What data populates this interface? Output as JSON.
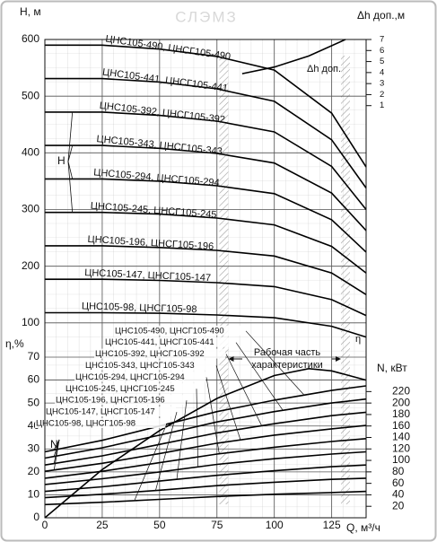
{
  "watermark": "СЛЭМЗ",
  "chart_data": [
    {
      "type": "line",
      "y_label": "H, м",
      "x_label": "Q, м³/ч",
      "xlim": [
        0,
        140
      ],
      "xticks": [
        0,
        25,
        50,
        75,
        100,
        125
      ],
      "ylim": [
        0,
        600
      ],
      "yticks": [
        100,
        200,
        300,
        400,
        500,
        600
      ],
      "grid": true,
      "annotation": "H",
      "working_range": [
        78,
        131
      ],
      "x": [
        0,
        25,
        50,
        75,
        100,
        125,
        140
      ],
      "series": [
        {
          "name": "ЦНС105-98, ЦНСГ105-98",
          "color": "#000000",
          "values": [
            118,
            118,
            117,
            114,
            109,
            94,
            75
          ]
        },
        {
          "name": "ЦНС105-147, ЦНСГ105-147",
          "color": "#000000",
          "values": [
            177,
            177,
            175,
            171,
            164,
            141,
            113
          ]
        },
        {
          "name": "ЦНС105-196, ЦНСГ105-196",
          "color": "#000000",
          "values": [
            236,
            236,
            233,
            228,
            218,
            188,
            150
          ]
        },
        {
          "name": "ЦНС105-245, ЦНСГ105-245",
          "color": "#000000",
          "values": [
            295,
            295,
            292,
            285,
            273,
            235,
            188
          ]
        },
        {
          "name": "ЦНС105-294, ЦНСГ105-294",
          "color": "#000000",
          "values": [
            354,
            354,
            350,
            342,
            328,
            282,
            225
          ]
        },
        {
          "name": "ЦНС105-343, ЦНСГ105-343",
          "color": "#000000",
          "values": [
            413,
            413,
            408,
            399,
            382,
            329,
            263
          ]
        },
        {
          "name": "ЦНС105-392, ЦНСГ105-392",
          "color": "#000000",
          "values": [
            472,
            472,
            466,
            456,
            437,
            376,
            300
          ]
        },
        {
          "name": "ЦНС105-441, ЦНСГ105-441",
          "color": "#000000",
          "values": [
            531,
            531,
            525,
            513,
            491,
            423,
            338
          ]
        },
        {
          "name": "ЦНС105-490, ЦНСГ105-490",
          "color": "#000000",
          "values": [
            590,
            590,
            583,
            570,
            546,
            470,
            375
          ]
        }
      ]
    },
    {
      "type": "line",
      "y_label": "Δh доп.,м",
      "ylim": [
        0,
        7
      ],
      "yticks": [
        1,
        2,
        3,
        4,
        5,
        6,
        7
      ],
      "grid": false,
      "x": [
        86,
        100,
        115,
        131
      ],
      "series": [
        {
          "name": "Δh доп.",
          "color": "#000000",
          "values": [
            3.9,
            4.5,
            5.5,
            7
          ]
        }
      ]
    },
    {
      "type": "line",
      "y_label": "η,%",
      "ylim": [
        0,
        70
      ],
      "yticks": [
        0,
        10,
        20,
        30,
        40,
        50,
        60,
        70
      ],
      "grid": true,
      "annotation": [
        "Рабочая часть",
        "характеристики"
      ],
      "x": [
        0,
        25,
        50,
        75,
        100,
        115,
        125,
        140
      ],
      "series": [
        {
          "name": "η",
          "color": "#000000",
          "values": [
            0,
            21,
            38,
            52,
            62,
            65,
            64,
            60
          ]
        }
      ]
    },
    {
      "type": "line",
      "y_label": "N, кВт",
      "ylim": [
        0,
        280
      ],
      "yticks": [
        20,
        40,
        60,
        80,
        100,
        120,
        140,
        160,
        180,
        200,
        220
      ],
      "grid": false,
      "annotation": "N",
      "x": [
        0,
        25,
        50,
        75,
        100,
        125,
        140
      ],
      "series": [
        {
          "name": "ЦНС105-98, ЦНСГ105-98",
          "color": "#000000",
          "values": [
            23,
            27,
            32,
            37,
            41,
            44,
            46
          ]
        },
        {
          "name": "ЦНС105-147, ЦНСГ105-147",
          "color": "#000000",
          "values": [
            35,
            41,
            48,
            56,
            62,
            67,
            69
          ]
        },
        {
          "name": "ЦНС105-196, ЦНСГ105-196",
          "color": "#000000",
          "values": [
            46,
            54,
            64,
            74,
            82,
            89,
            92
          ]
        },
        {
          "name": "ЦНС105-245, ЦНСГ105-245",
          "color": "#000000",
          "values": [
            58,
            68,
            80,
            93,
            103,
            111,
            115
          ]
        },
        {
          "name": "ЦНС105-294, ЦНСГ105-294",
          "color": "#000000",
          "values": [
            69,
            81,
            96,
            111,
            123,
            133,
            138
          ]
        },
        {
          "name": "ЦНС105-343, ЦНСГ105-343",
          "color": "#000000",
          "values": [
            81,
            95,
            112,
            130,
            144,
            155,
            161
          ]
        },
        {
          "name": "ЦНС105-392, ЦНСГ105-392",
          "color": "#000000",
          "values": [
            92,
            108,
            128,
            148,
            164,
            178,
            184
          ]
        },
        {
          "name": "ЦНС105-441, ЦНСГ105-441",
          "color": "#000000",
          "values": [
            104,
            122,
            144,
            167,
            185,
            200,
            207
          ]
        },
        {
          "name": "ЦНС105-490, ЦНСГ105-490",
          "color": "#000000",
          "values": [
            115,
            135,
            160,
            185,
            205,
            222,
            230
          ]
        }
      ]
    }
  ]
}
